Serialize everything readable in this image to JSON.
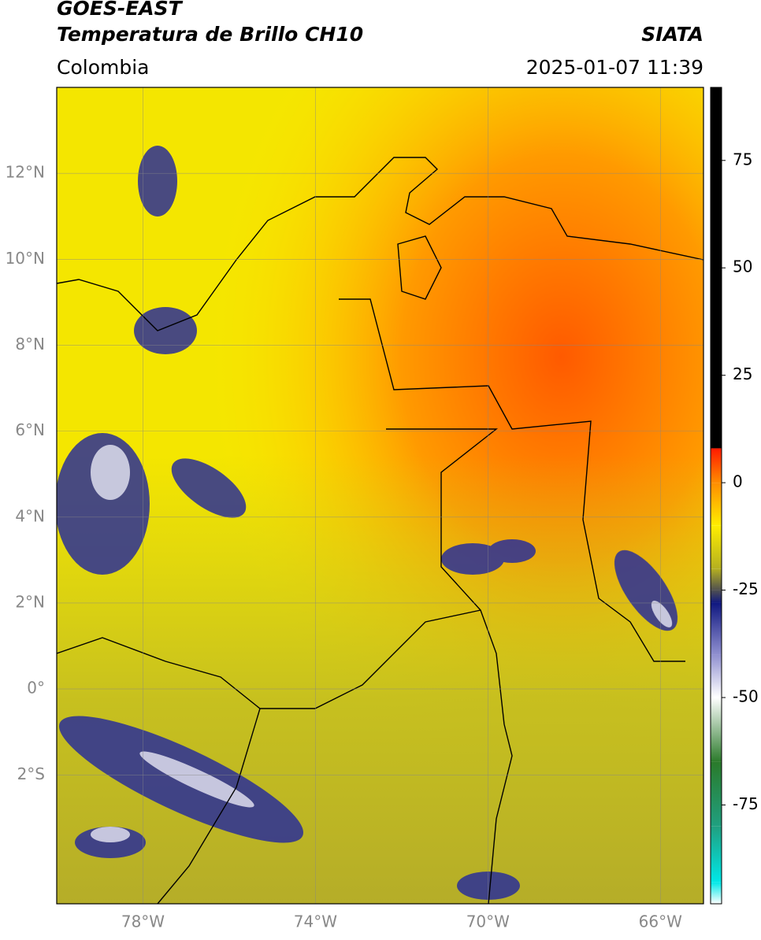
{
  "header": {
    "title": "GOES-EAST",
    "subtitle": "Temperatura de Brillo CH10",
    "source": "SIATA",
    "region": "Colombia",
    "datetime": "2025-01-07 11:39"
  },
  "map": {
    "xlim": [
      -80,
      -65
    ],
    "ylim": [
      -5,
      14
    ],
    "grid": true,
    "xticks": [
      {
        "value": -78,
        "label": "78°W"
      },
      {
        "value": -74,
        "label": "74°W"
      },
      {
        "value": -70,
        "label": "70°W"
      },
      {
        "value": -66,
        "label": "66°W"
      }
    ],
    "yticks": [
      {
        "value": 12,
        "label": "12°N"
      },
      {
        "value": 10,
        "label": "10°N"
      },
      {
        "value": 8,
        "label": "8°N"
      },
      {
        "value": 6,
        "label": "6°N"
      },
      {
        "value": 4,
        "label": "4°N"
      },
      {
        "value": 2,
        "label": "2°N"
      },
      {
        "value": 0,
        "label": "0°"
      },
      {
        "value": -2,
        "label": "2°S"
      }
    ]
  },
  "colorbar": {
    "lim": [
      -98,
      92
    ],
    "ticks": [
      75,
      50,
      25,
      0,
      -25,
      -50,
      -75
    ],
    "stops": [
      92,
      8,
      0,
      -10,
      -20,
      -25,
      -28,
      -40,
      -50,
      -65,
      -80,
      -93,
      -98
    ],
    "colors": [
      "#000000",
      "#ff1a00",
      "#ff8c00",
      "#ffee00",
      "#b5b020",
      "#505050",
      "#101880",
      "#9090d0",
      "#ffffff",
      "#2a7a2a",
      "#20a080",
      "#00e8e8",
      "#ffffff"
    ]
  }
}
